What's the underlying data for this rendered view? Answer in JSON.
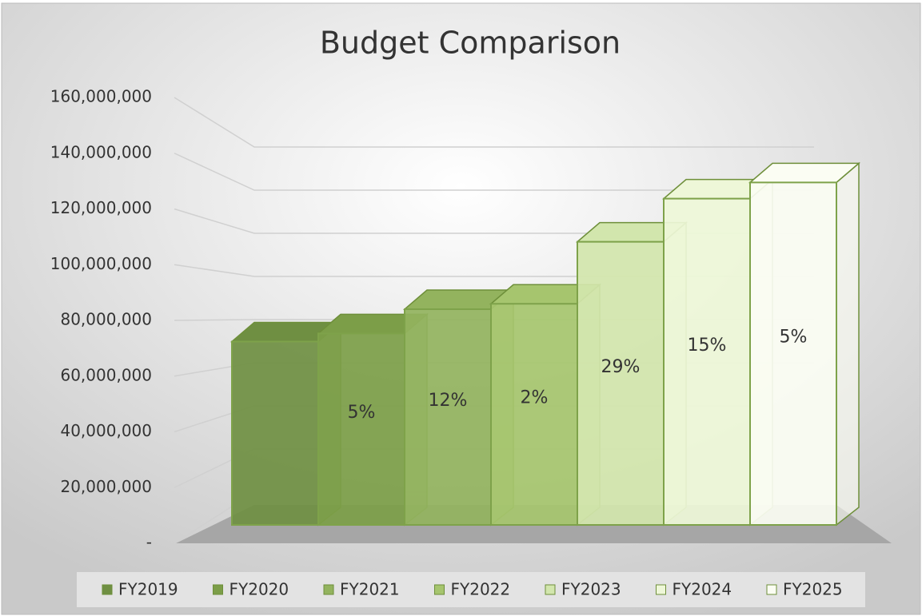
{
  "chart_data": {
    "type": "bar3d",
    "title": "Budget Comparison",
    "categories": [
      ""
    ],
    "series": [
      {
        "name": "FY2019",
        "color": "#6f8f42",
        "values": [
          68000000
        ]
      },
      {
        "name": "FY2020",
        "color": "#7c9e48",
        "values": [
          71000000
        ]
      },
      {
        "name": "FY2021",
        "color": "#93b35e",
        "values": [
          80000000
        ]
      },
      {
        "name": "FY2022",
        "color": "#a6c56e",
        "values": [
          82000000
        ]
      },
      {
        "name": "FY2023",
        "color": "#d2e6ad",
        "values": [
          105000000
        ]
      },
      {
        "name": "FY2024",
        "color": "#eef7d8",
        "values": [
          121000000
        ]
      },
      {
        "name": "FY2025",
        "color": "#fbfdf3",
        "values": [
          127000000
        ]
      }
    ],
    "annotations": [
      {
        "series": 1,
        "text": "5%"
      },
      {
        "series": 2,
        "text": "12%"
      },
      {
        "series": 3,
        "text": "2%"
      },
      {
        "series": 4,
        "text": "29%"
      },
      {
        "series": 5,
        "text": "15%"
      },
      {
        "series": 6,
        "text": "5%"
      }
    ],
    "ylim": [
      0,
      160000000
    ],
    "yticks": [
      {
        "value": 0,
        "label": "-"
      },
      {
        "value": 20000000,
        "label": "20,000,000"
      },
      {
        "value": 40000000,
        "label": "40,000,000"
      },
      {
        "value": 60000000,
        "label": "60,000,000"
      },
      {
        "value": 80000000,
        "label": "80,000,000"
      },
      {
        "value": 100000000,
        "label": "100,000,000"
      },
      {
        "value": 120000000,
        "label": "120,000,000"
      },
      {
        "value": 140000000,
        "label": "140,000,000"
      },
      {
        "value": 160000000,
        "label": "160,000,000"
      }
    ],
    "grid": true,
    "legend": "bottom"
  }
}
